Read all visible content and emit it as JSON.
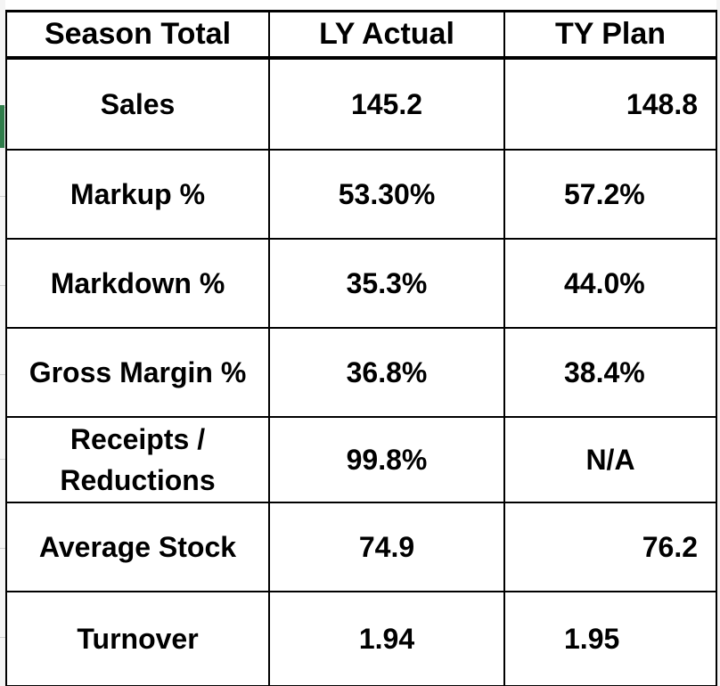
{
  "table": {
    "headers": [
      "Season Total",
      "LY Actual",
      "TY Plan"
    ],
    "rows": [
      {
        "label": "Sales",
        "ly": "145.2",
        "ty": "148.8"
      },
      {
        "label": "Markup %",
        "ly": "53.30%",
        "ty": "57.2%"
      },
      {
        "label": "Markdown %",
        "ly": "35.3%",
        "ty": "44.0%"
      },
      {
        "label": "Gross Margin %",
        "ly": "36.8%",
        "ty": "38.4%"
      },
      {
        "label_line1": "Receipts /",
        "label_line2": "Reductions",
        "ly": "99.8%",
        "ty": "N/A"
      },
      {
        "label": "Average Stock",
        "ly": "74.9",
        "ty": "76.2"
      },
      {
        "label": "Turnover",
        "ly": "1.94",
        "ty": "1.95"
      }
    ]
  },
  "colors": {
    "grid": "#000000",
    "text": "#000000",
    "background": "#ffffff",
    "sheet_accent": "#2f7d4a"
  }
}
